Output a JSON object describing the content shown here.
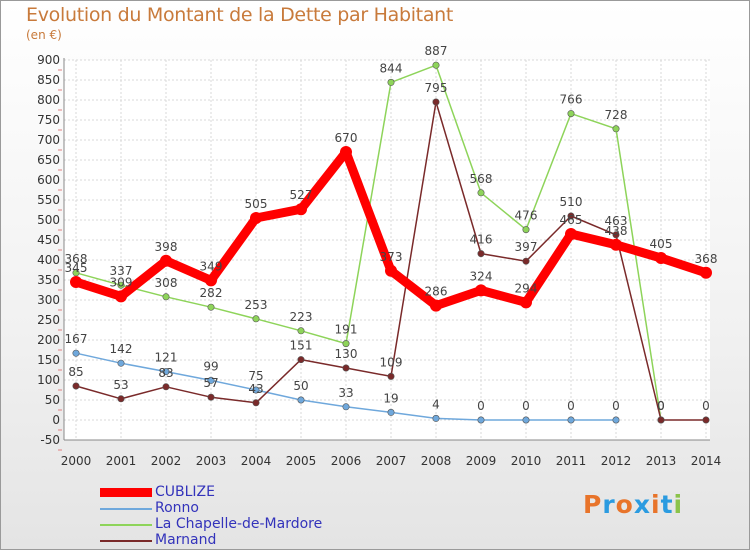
{
  "chart": {
    "title": "Evolution du Montant de la Dette par Habitant",
    "unit": "(en €)"
  },
  "logo": {
    "text": [
      "P",
      "r",
      "o",
      "x",
      "i",
      "t",
      "i"
    ],
    "colors": [
      "#e8742a",
      "#2b9be0",
      "#e8742a",
      "#2b9be0",
      "#e8742a",
      "#2b9be0",
      "#8bc34a"
    ]
  },
  "chart_data": {
    "type": "line",
    "title": "Evolution du Montant de la Dette par Habitant",
    "ylabel": "(en €)",
    "xlabel": "",
    "ylim": [
      -50,
      900
    ],
    "yticks": [
      -50,
      0,
      50,
      100,
      150,
      200,
      250,
      300,
      350,
      400,
      450,
      500,
      550,
      600,
      650,
      700,
      750,
      800,
      850,
      900
    ],
    "categories": [
      "2000",
      "2001",
      "2002",
      "2003",
      "2004",
      "2005",
      "2006",
      "2007",
      "2008",
      "2009",
      "2010",
      "2011",
      "2012",
      "2013",
      "2014"
    ],
    "grid": true,
    "legend": "bottom-left",
    "series": [
      {
        "name": "CUBLIZE",
        "color": "#ff0000",
        "values": [
          345,
          309,
          398,
          349,
          505,
          527,
          670,
          373,
          286,
          324,
          294,
          465,
          438,
          405,
          368
        ]
      },
      {
        "name": "Ronno",
        "color": "#6fa8dc",
        "values": [
          167,
          142,
          121,
          99,
          75,
          50,
          33,
          19,
          4,
          0,
          0,
          0,
          0,
          null,
          null
        ]
      },
      {
        "name": "La Chapelle-de-Mardore",
        "color": "#8ed45a",
        "values": [
          368,
          337,
          308,
          282,
          253,
          223,
          191,
          844,
          887,
          568,
          476,
          766,
          728,
          0,
          null
        ]
      },
      {
        "name": "Marnand",
        "color": "#7a2a2a",
        "values": [
          85,
          53,
          83,
          57,
          43,
          151,
          130,
          109,
          795,
          416,
          397,
          510,
          463,
          0,
          0
        ]
      }
    ]
  }
}
